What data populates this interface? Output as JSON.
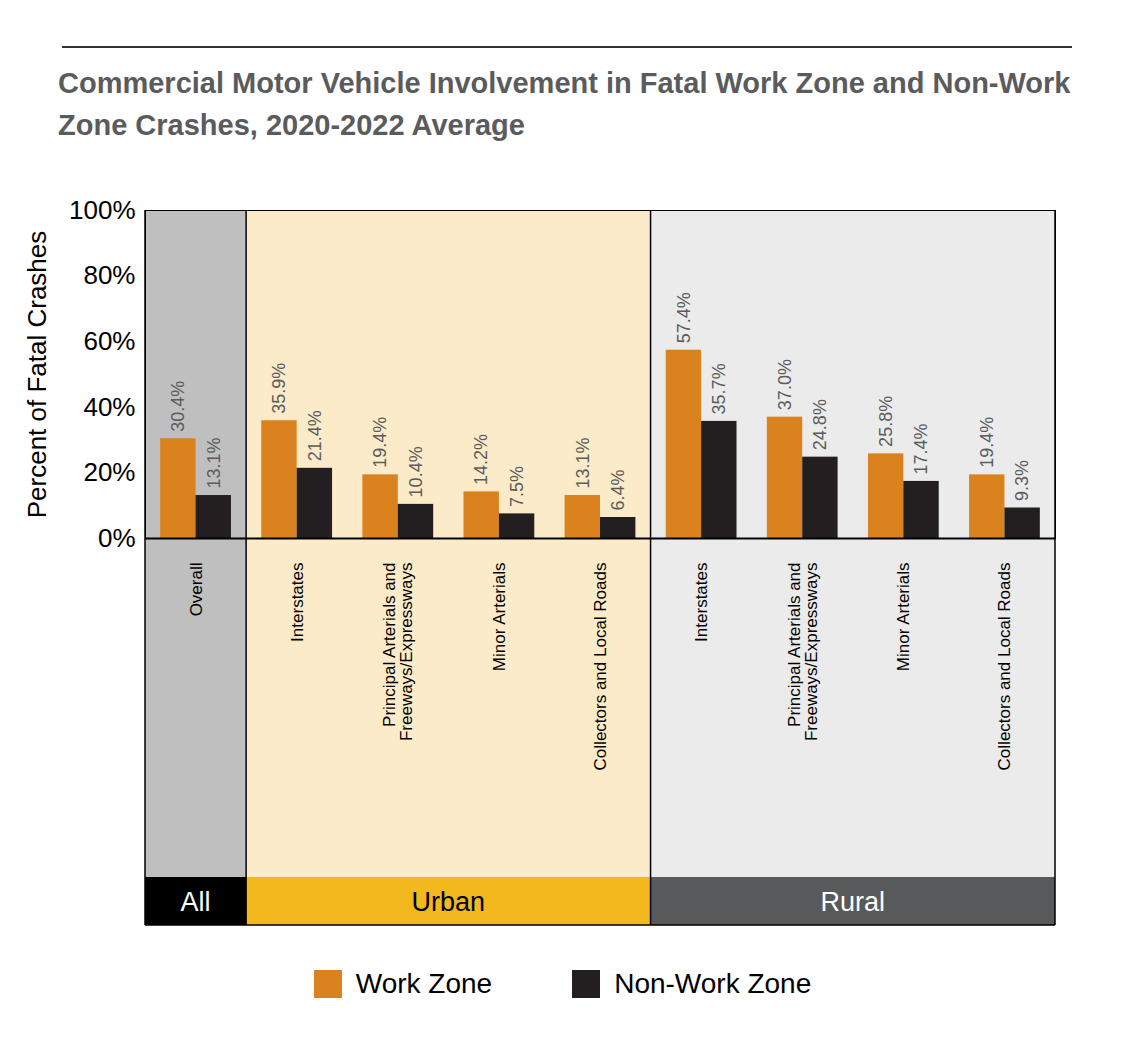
{
  "chart_data": {
    "type": "bar",
    "title": "Commercial Motor Vehicle Involvement in Fatal Work Zone and Non-Work Zone Crashes, 2020-2022 Average",
    "y_label": "Percent of Fatal Crashes",
    "categories": [
      "Overall",
      "Interstates",
      "Principal Arterials and Freeways/Expressways",
      "Minor Arterials",
      "Collectors and Local Roads",
      "Interstates",
      "Principal Arterials and Freeways/Expressways",
      "Minor Arterials",
      "Collectors and Local Roads"
    ],
    "category_groups": [
      "All",
      "Urban",
      "Urban",
      "Urban",
      "Urban",
      "Rural",
      "Rural",
      "Rural",
      "Rural"
    ],
    "series": [
      {
        "name": "Work Zone",
        "color": "#d9821e",
        "values": [
          30.4,
          35.9,
          19.4,
          14.2,
          13.1,
          57.4,
          37.0,
          25.8,
          19.4
        ],
        "value_labels": [
          "30.4%",
          "35.9%",
          "19.4%",
          "14.2%",
          "13.1%",
          "57.4%",
          "37.0%",
          "25.8%",
          "19.4%"
        ]
      },
      {
        "name": "Non-Work Zone",
        "color": "#231f20",
        "values": [
          13.1,
          21.4,
          10.4,
          7.5,
          6.4,
          35.7,
          24.8,
          17.4,
          9.3
        ],
        "value_labels": [
          "13.1%",
          "21.4%",
          "10.4%",
          "7.5%",
          "6.4%",
          "35.7%",
          "24.8%",
          "17.4%",
          "9.3%"
        ]
      }
    ],
    "ylim": [
      0,
      100
    ],
    "yticks": [
      {
        "value": 0,
        "label": "0%"
      },
      {
        "value": 20,
        "label": "20%"
      },
      {
        "value": 40,
        "label": "40%"
      },
      {
        "value": 60,
        "label": "60%"
      },
      {
        "value": 80,
        "label": "80%"
      },
      {
        "value": 100,
        "label": "100%"
      }
    ],
    "data_labels": true,
    "grid": false,
    "legend": "bottom"
  }
}
